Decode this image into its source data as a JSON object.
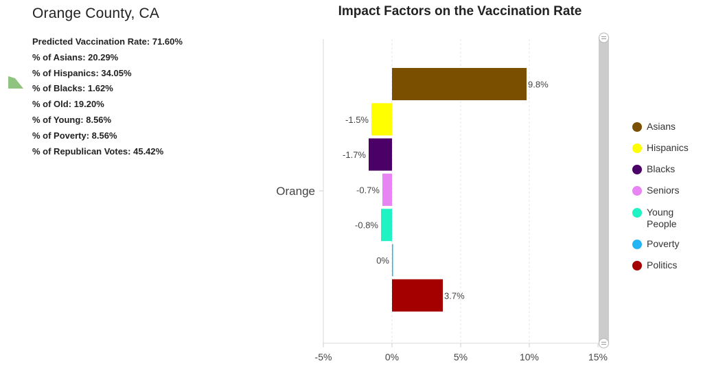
{
  "panel": {
    "county": "Orange County, CA",
    "stats": [
      "Predicted Vaccination Rate: 71.60%",
      "% of Asians: 20.29%",
      "% of Hispanics: 34.05%",
      "% of Blacks: 1.62%",
      "% of Old: 19.20%",
      "% of Young: 8.56%",
      "% of Poverty: 8.56%",
      "% of Republican Votes: 45.42%"
    ],
    "marker_color": "#8fc480"
  },
  "chart_data": {
    "type": "bar",
    "orientation": "horizontal",
    "title": "Impact Factors on the Vaccination Rate",
    "category": "Orange",
    "xlabel": "",
    "ylabel": "",
    "xlim": [
      -5,
      15
    ],
    "xticks": [
      "-5%",
      "0%",
      "5%",
      "10%",
      "15%"
    ],
    "xtick_values": [
      -5,
      0,
      5,
      10,
      15
    ],
    "grid": true,
    "legend_position": "right",
    "series": [
      {
        "name": "Asians",
        "value": 9.8,
        "label": "9.8%",
        "color": "#7b4f00"
      },
      {
        "name": "Hispanics",
        "value": -1.5,
        "label": "-1.5%",
        "color": "#ffff00"
      },
      {
        "name": "Blacks",
        "value": -1.7,
        "label": "-1.7%",
        "color": "#4b0068"
      },
      {
        "name": "Seniors",
        "value": -0.7,
        "label": "-0.7%",
        "color": "#e884f3"
      },
      {
        "name": "Young People",
        "value": -0.8,
        "label": "-0.8%",
        "color": "#1ff3c4"
      },
      {
        "name": "Poverty",
        "value": 0,
        "label": "0%",
        "color": "#23b4f5"
      },
      {
        "name": "Politics",
        "value": 3.7,
        "label": "3.7%",
        "color": "#a50000"
      }
    ]
  }
}
